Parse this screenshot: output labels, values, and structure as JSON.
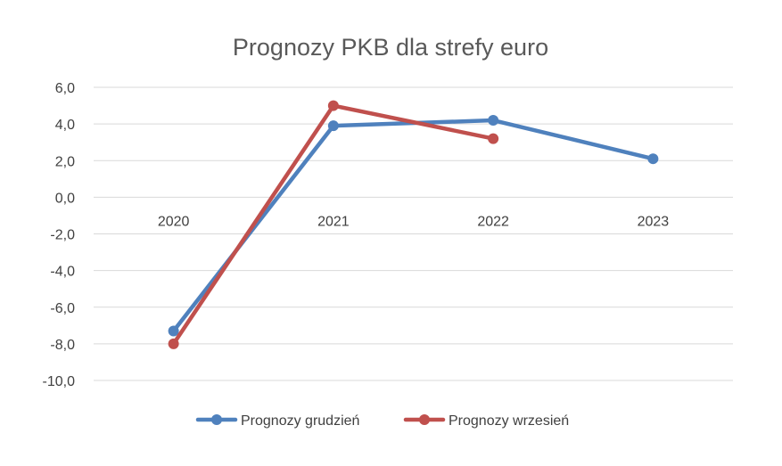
{
  "chart_data": {
    "type": "line",
    "title": "Prognozy PKB dla strefy euro",
    "categories": [
      "2020",
      "2021",
      "2022",
      "2023"
    ],
    "y_ticks": [
      "6,0",
      "4,0",
      "2,0",
      "0,0",
      "-2,0",
      "-4,0",
      "-6,0",
      "-8,0",
      "-10,0"
    ],
    "ylim": [
      -10,
      6
    ],
    "grid": true,
    "legend_position": "bottom",
    "series": [
      {
        "name": "Prognozy grudzień",
        "color": "#4f81bd",
        "values": [
          -7.3,
          3.9,
          4.2,
          2.1
        ]
      },
      {
        "name": "Prognozy wrzesień",
        "color": "#c0504d",
        "values": [
          -8.0,
          5.0,
          3.2,
          null
        ]
      }
    ]
  }
}
